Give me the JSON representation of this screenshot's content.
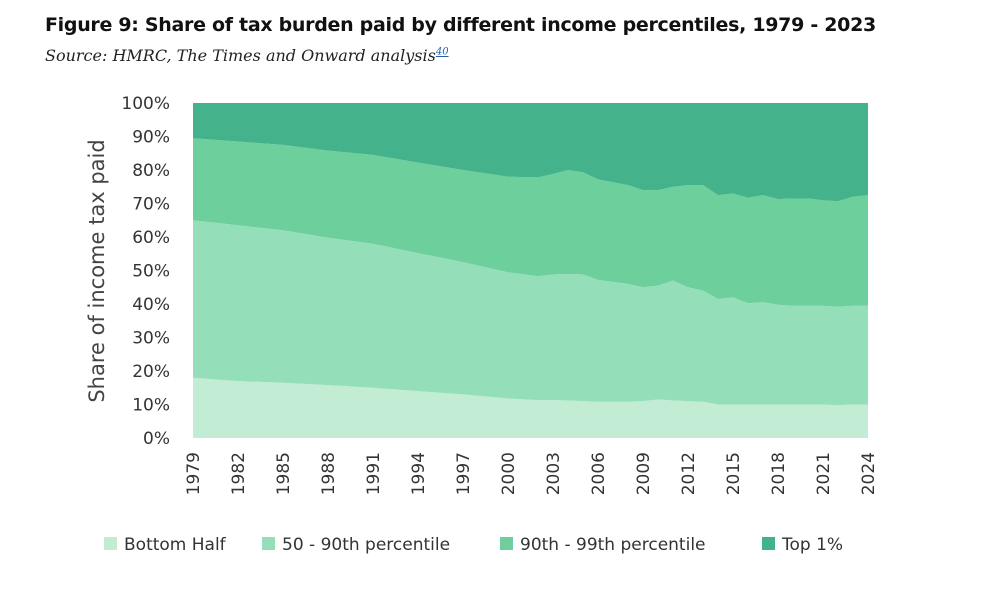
{
  "figure": {
    "title": "Figure 9: Share of tax burden paid by different income percentiles, 1979 - 2023",
    "source": "Source: HMRC, The Times and Onward analysis",
    "source_ref": "40"
  },
  "chart_data": {
    "type": "area",
    "stacked": true,
    "title": "Figure 9: Share of tax burden paid by different income percentiles, 1979 - 2023",
    "xlabel": "",
    "ylabel": "Share of income tax paid",
    "ylim": [
      0,
      100
    ],
    "y_ticks": [
      "0%",
      "10%",
      "20%",
      "30%",
      "40%",
      "50%",
      "60%",
      "70%",
      "80%",
      "90%",
      "100%"
    ],
    "x_ticks": [
      "1979",
      "1982",
      "1985",
      "1988",
      "1991",
      "1994",
      "1997",
      "2000",
      "2003",
      "2006",
      "2009",
      "2012",
      "2015",
      "2018",
      "2021",
      "2024"
    ],
    "x": [
      1979,
      1982,
      1985,
      1988,
      1991,
      1994,
      1997,
      2000,
      2002,
      2003,
      2004,
      2005,
      2006,
      2008,
      2009,
      2010,
      2011,
      2012,
      2013,
      2014,
      2015,
      2016,
      2017,
      2018,
      2019,
      2020,
      2021,
      2022,
      2023,
      2024
    ],
    "series": [
      {
        "name": "Bottom Half",
        "color": "#c2ecd4",
        "values": [
          18,
          17,
          16.5,
          15.8,
          15,
          14,
          13,
          11.8,
          11.3,
          11.3,
          11.2,
          11,
          10.8,
          10.8,
          11,
          11.5,
          11.2,
          11,
          10.8,
          10,
          10,
          10,
          10,
          10,
          10,
          10,
          10,
          9.8,
          10,
          10
        ]
      },
      {
        "name": "50 - 90th percentile",
        "color": "#94dfb9",
        "values": [
          47,
          46.5,
          45.5,
          44,
          43,
          41.2,
          39.5,
          37.7,
          37,
          37.5,
          37.8,
          37.8,
          36.4,
          35.2,
          34,
          34,
          35.8,
          34,
          33.2,
          31.5,
          32,
          30.2,
          30.5,
          29.8,
          29.5,
          29.5,
          29.5,
          29.4,
          29.5,
          29.5
        ]
      },
      {
        "name": "90th - 99th percentile",
        "color": "#6ccf9c",
        "values": [
          24.5,
          25,
          25.5,
          26,
          26.5,
          27,
          27.5,
          28.5,
          29.5,
          30,
          31,
          30.5,
          30,
          29.5,
          29,
          28.5,
          28,
          30.5,
          31.5,
          31,
          31,
          31.5,
          32,
          31.5,
          32,
          32,
          31.5,
          31.5,
          32.5,
          33
        ]
      },
      {
        "name": "Top 1%",
        "color": "#44b38b",
        "values": [
          10.5,
          11.5,
          12.5,
          14.2,
          15.5,
          17.8,
          20,
          22,
          22.2,
          21.2,
          20,
          20.7,
          22.8,
          24.5,
          26,
          26,
          25,
          24.5,
          24.5,
          27.5,
          27,
          28.3,
          27.5,
          28.7,
          28.5,
          28.5,
          29,
          29.3,
          28,
          27.5
        ]
      }
    ],
    "legend": {
      "placement": "bottom",
      "order": [
        "Bottom Half",
        "50 - 90th percentile",
        "90th - 99th percentile",
        "Top 1%"
      ]
    },
    "grid": false
  }
}
